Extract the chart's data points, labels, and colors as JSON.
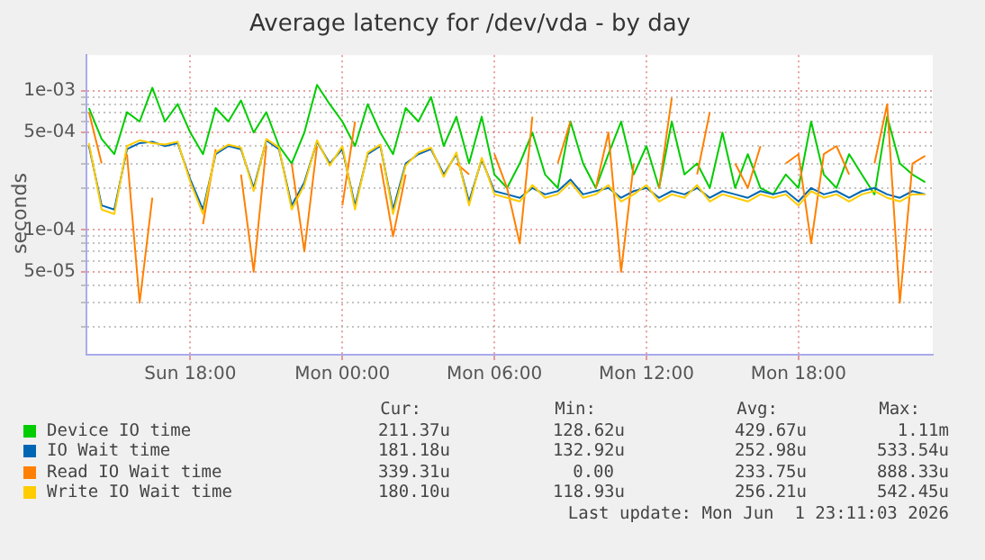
{
  "chart_data": {
    "type": "line",
    "title": "Average latency for /dev/vda - by day",
    "ylabel": "seconds",
    "log": true,
    "grid": true,
    "legend": "bottom",
    "marker": "none",
    "line_style": "solid",
    "xlim": [
      "2026-05-31T13:54",
      "2026-06-01T23:18"
    ],
    "ylim": [
      1.27e-05,
      0.0018
    ],
    "xticks": [
      {
        "value": "2026-05-31T18:00",
        "label": "Sun 18:00"
      },
      {
        "value": "2026-06-01T00:00",
        "label": "Mon 00:00"
      },
      {
        "value": "2026-06-01T06:00",
        "label": "Mon 06:00"
      },
      {
        "value": "2026-06-01T12:00",
        "label": "Mon 12:00"
      },
      {
        "value": "2026-06-01T18:00",
        "label": "Mon 18:00"
      }
    ],
    "yticks": [
      {
        "value": 2e-05,
        "label": null
      },
      {
        "value": 3e-05,
        "label": null
      },
      {
        "value": 4e-05,
        "label": null
      },
      {
        "value": 5e-05,
        "label": "5e-05"
      },
      {
        "value": 6e-05,
        "label": null
      },
      {
        "value": 7e-05,
        "label": null
      },
      {
        "value": 8e-05,
        "label": null
      },
      {
        "value": 9e-05,
        "label": null
      },
      {
        "value": 0.0001,
        "label": "1e-04"
      },
      {
        "value": 0.0002,
        "label": null
      },
      {
        "value": 0.0003,
        "label": null
      },
      {
        "value": 0.0004,
        "label": null
      },
      {
        "value": 0.0005,
        "label": "5e-04"
      },
      {
        "value": 0.0006,
        "label": null
      },
      {
        "value": 0.0007,
        "label": null
      },
      {
        "value": 0.0008,
        "label": null
      },
      {
        "value": 0.0009,
        "label": null
      },
      {
        "value": 0.001,
        "label": "1e-03"
      }
    ],
    "x": [
      "2026-05-31T14:00",
      "2026-05-31T14:30",
      "2026-05-31T15:00",
      "2026-05-31T15:30",
      "2026-05-31T16:00",
      "2026-05-31T16:30",
      "2026-05-31T17:00",
      "2026-05-31T17:30",
      "2026-05-31T18:00",
      "2026-05-31T18:30",
      "2026-05-31T19:00",
      "2026-05-31T19:30",
      "2026-05-31T20:00",
      "2026-05-31T20:30",
      "2026-05-31T21:00",
      "2026-05-31T21:30",
      "2026-05-31T22:00",
      "2026-05-31T22:30",
      "2026-05-31T23:00",
      "2026-05-31T23:30",
      "2026-06-01T00:00",
      "2026-06-01T00:30",
      "2026-06-01T01:00",
      "2026-06-01T01:30",
      "2026-06-01T02:00",
      "2026-06-01T02:30",
      "2026-06-01T03:00",
      "2026-06-01T03:30",
      "2026-06-01T04:00",
      "2026-06-01T04:30",
      "2026-06-01T05:00",
      "2026-06-01T05:30",
      "2026-06-01T06:00",
      "2026-06-01T06:30",
      "2026-06-01T07:00",
      "2026-06-01T07:30",
      "2026-06-01T08:00",
      "2026-06-01T08:30",
      "2026-06-01T09:00",
      "2026-06-01T09:30",
      "2026-06-01T10:00",
      "2026-06-01T10:30",
      "2026-06-01T11:00",
      "2026-06-01T11:30",
      "2026-06-01T12:00",
      "2026-06-01T12:30",
      "2026-06-01T13:00",
      "2026-06-01T13:30",
      "2026-06-01T14:00",
      "2026-06-01T14:30",
      "2026-06-01T15:00",
      "2026-06-01T15:30",
      "2026-06-01T16:00",
      "2026-06-01T16:30",
      "2026-06-01T17:00",
      "2026-06-01T17:30",
      "2026-06-01T18:00",
      "2026-06-01T18:30",
      "2026-06-01T19:00",
      "2026-06-01T19:30",
      "2026-06-01T20:00",
      "2026-06-01T20:30",
      "2026-06-01T21:00",
      "2026-06-01T21:30",
      "2026-06-01T22:00",
      "2026-06-01T22:30",
      "2026-06-01T23:00"
    ],
    "series": [
      {
        "name": "Device IO time",
        "color": "#00cc00",
        "values": [
          0.00075,
          0.00045,
          0.00035,
          0.0007,
          0.0006,
          0.00105,
          0.0006,
          0.0008,
          0.0005,
          0.00035,
          0.00075,
          0.0006,
          0.00085,
          0.0005,
          0.0007,
          0.0004,
          0.0003,
          0.0005,
          0.0011,
          0.0008,
          0.0006,
          0.0004,
          0.0008,
          0.0005,
          0.00035,
          0.00075,
          0.0006,
          0.0009,
          0.0004,
          0.00065,
          0.0003,
          0.00065,
          0.00025,
          0.0002,
          0.0003,
          0.0005,
          0.00025,
          0.0002,
          0.0006,
          0.0003,
          0.0002,
          0.00035,
          0.0006,
          0.00025,
          0.0004,
          0.0002,
          0.0006,
          0.00025,
          0.0003,
          0.0002,
          0.0005,
          0.0002,
          0.00035,
          0.0002,
          0.00018,
          0.00025,
          0.0002,
          0.0006,
          0.00025,
          0.0002,
          0.00035,
          0.00025,
          0.00018,
          0.00065,
          0.0003,
          0.00025,
          0.00022
        ]
      },
      {
        "name": "IO Wait time",
        "color": "#0066b3",
        "values": [
          0.0004,
          0.00015,
          0.00014,
          0.00038,
          0.00042,
          0.00043,
          0.0004,
          0.00042,
          0.00023,
          0.00014,
          0.00035,
          0.0004,
          0.00038,
          0.0002,
          0.00044,
          0.00038,
          0.00015,
          0.00022,
          0.00043,
          0.0003,
          0.00038,
          0.00015,
          0.00035,
          0.0004,
          0.00014,
          0.0003,
          0.00035,
          0.00038,
          0.00025,
          0.00035,
          0.00016,
          0.00032,
          0.00019,
          0.00018,
          0.00017,
          0.0002,
          0.00018,
          0.00019,
          0.00023,
          0.00018,
          0.00019,
          0.0002,
          0.00017,
          0.00019,
          0.0002,
          0.00017,
          0.00019,
          0.00018,
          0.0002,
          0.00017,
          0.00019,
          0.00018,
          0.00017,
          0.00019,
          0.00018,
          0.00019,
          0.00016,
          0.0002,
          0.00018,
          0.00019,
          0.00017,
          0.00019,
          0.0002,
          0.00018,
          0.00017,
          0.00019,
          0.00018
        ]
      },
      {
        "name": "Read IO Wait time",
        "color": "#ff8000",
        "values": [
          0.0007,
          0.0003,
          null,
          0.00035,
          3e-05,
          0.00017,
          null,
          null,
          null,
          0.00011,
          0.00038,
          null,
          0.00025,
          5e-05,
          0.0004,
          null,
          0.0003,
          7e-05,
          0.0004,
          null,
          0.00015,
          0.0006,
          null,
          0.0003,
          9e-05,
          0.00025,
          null,
          null,
          null,
          0.0003,
          0.00025,
          null,
          0.00035,
          0.0002,
          8e-05,
          0.00065,
          null,
          0.0003,
          0.0006,
          null,
          0.0002,
          0.0005,
          5e-05,
          0.0003,
          null,
          0.0002,
          0.00089,
          null,
          0.00025,
          0.0007,
          null,
          0.0003,
          0.0002,
          0.0004,
          null,
          0.0003,
          0.00035,
          8e-05,
          0.00035,
          0.0004,
          0.00025,
          null,
          0.0003,
          0.0008,
          3e-05,
          0.0003,
          0.00034
        ]
      },
      {
        "name": "Write IO Wait time",
        "color": "#ffcc00",
        "values": [
          0.00042,
          0.00014,
          0.00013,
          0.0004,
          0.00044,
          0.00042,
          0.00041,
          0.00043,
          0.00022,
          0.00013,
          0.00036,
          0.00041,
          0.00039,
          0.00019,
          0.00045,
          0.00039,
          0.00014,
          0.00021,
          0.00044,
          0.00029,
          0.0004,
          0.00014,
          0.00036,
          0.00041,
          0.00013,
          0.00029,
          0.00036,
          0.00039,
          0.00024,
          0.00036,
          0.00015,
          0.00033,
          0.00018,
          0.00017,
          0.00016,
          0.00021,
          0.00017,
          0.00018,
          0.00022,
          0.00017,
          0.00018,
          0.00021,
          0.00016,
          0.00018,
          0.00021,
          0.00016,
          0.00018,
          0.00017,
          0.00021,
          0.00016,
          0.00018,
          0.00017,
          0.00016,
          0.00018,
          0.00017,
          0.00018,
          0.00015,
          0.00019,
          0.00017,
          0.00018,
          0.00016,
          0.00018,
          0.00019,
          0.00017,
          0.00016,
          0.00018,
          0.00018
        ]
      }
    ],
    "annotations": [
      "Cur:",
      "Min:",
      "Avg:",
      "Max:",
      "211.37u",
      "128.62u",
      "429.67u",
      "1.11m",
      "181.18u",
      "132.92u",
      "252.98u",
      "533.54u",
      "339.31u",
      "0.00",
      "233.75u",
      "888.33u",
      "180.10u",
      "118.93u",
      "256.21u",
      "542.45u",
      "Last update: Mon Jun  1 23:11:03 2026"
    ]
  }
}
